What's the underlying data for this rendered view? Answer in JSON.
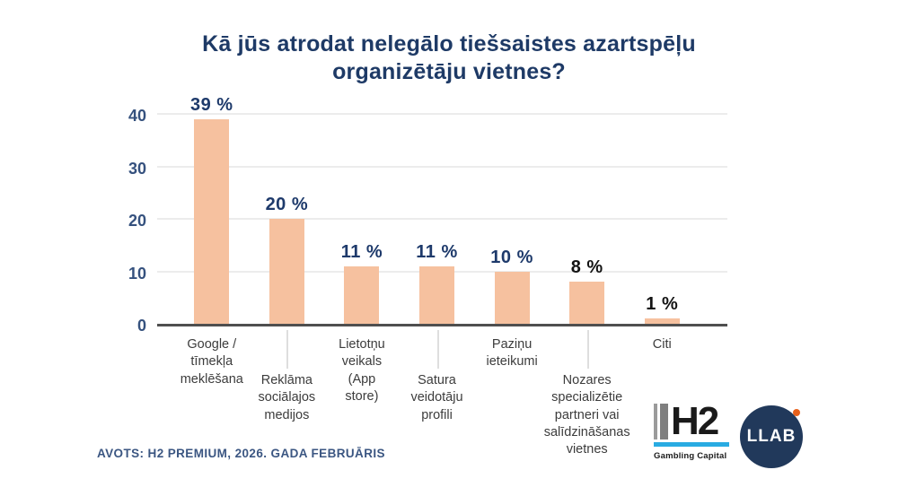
{
  "chart_data": {
    "type": "bar",
    "title": "Kā jūs atrodat nelegālo tiešsaistes azartspēļu organizētāju vietnes?",
    "categories": [
      "Google /\ntīmekļa\nmeklēšana",
      "Reklāma\nsociālajos\nmedijos",
      "Lietotņu\nveikals\n(App\nstore)",
      "Satura\nveidotāju\nprofili",
      "Paziņu\nieteikumi",
      "Nozares\nspecializētie\npartneri vai\nsalīdzināšanas\nvietnes",
      "Citi"
    ],
    "values": [
      39,
      20,
      11,
      11,
      10,
      8,
      1
    ],
    "value_labels": [
      "39 %",
      "20 %",
      "11 %",
      "11 %",
      "10 %",
      "8 %",
      "1 %"
    ],
    "value_label_colors": [
      "#1e3a6b",
      "#1e3a6b",
      "#1e3a6b",
      "#1e3a6b",
      "#1e3a6b",
      "#141414",
      "#141414"
    ],
    "yticks": [
      0,
      10,
      20,
      30,
      40
    ],
    "ylim": [
      0,
      44
    ],
    "xlabel": "",
    "ylabel": "",
    "grid": true,
    "legend": "none",
    "bar_color": "#f6c19f",
    "baseline_color": "#4f4f4f",
    "gridline_color": "#ececec"
  },
  "footer": {
    "source": "AVOTS: H2 PREMIUM, 2026. GADA FEBRUĀRIS"
  },
  "logos": {
    "h2": {
      "text": "H2",
      "subtext": "Gambling Capital",
      "underline_color": "#29abe2"
    },
    "llab": {
      "text": "LLAB",
      "circle_color": "#21395b",
      "dot_color": "#e8611c"
    }
  },
  "colors": {
    "title": "#1e3a66",
    "ytick_labels": "#35517e",
    "category_labels": "#3c3c3c",
    "footer": "#3b5682"
  }
}
